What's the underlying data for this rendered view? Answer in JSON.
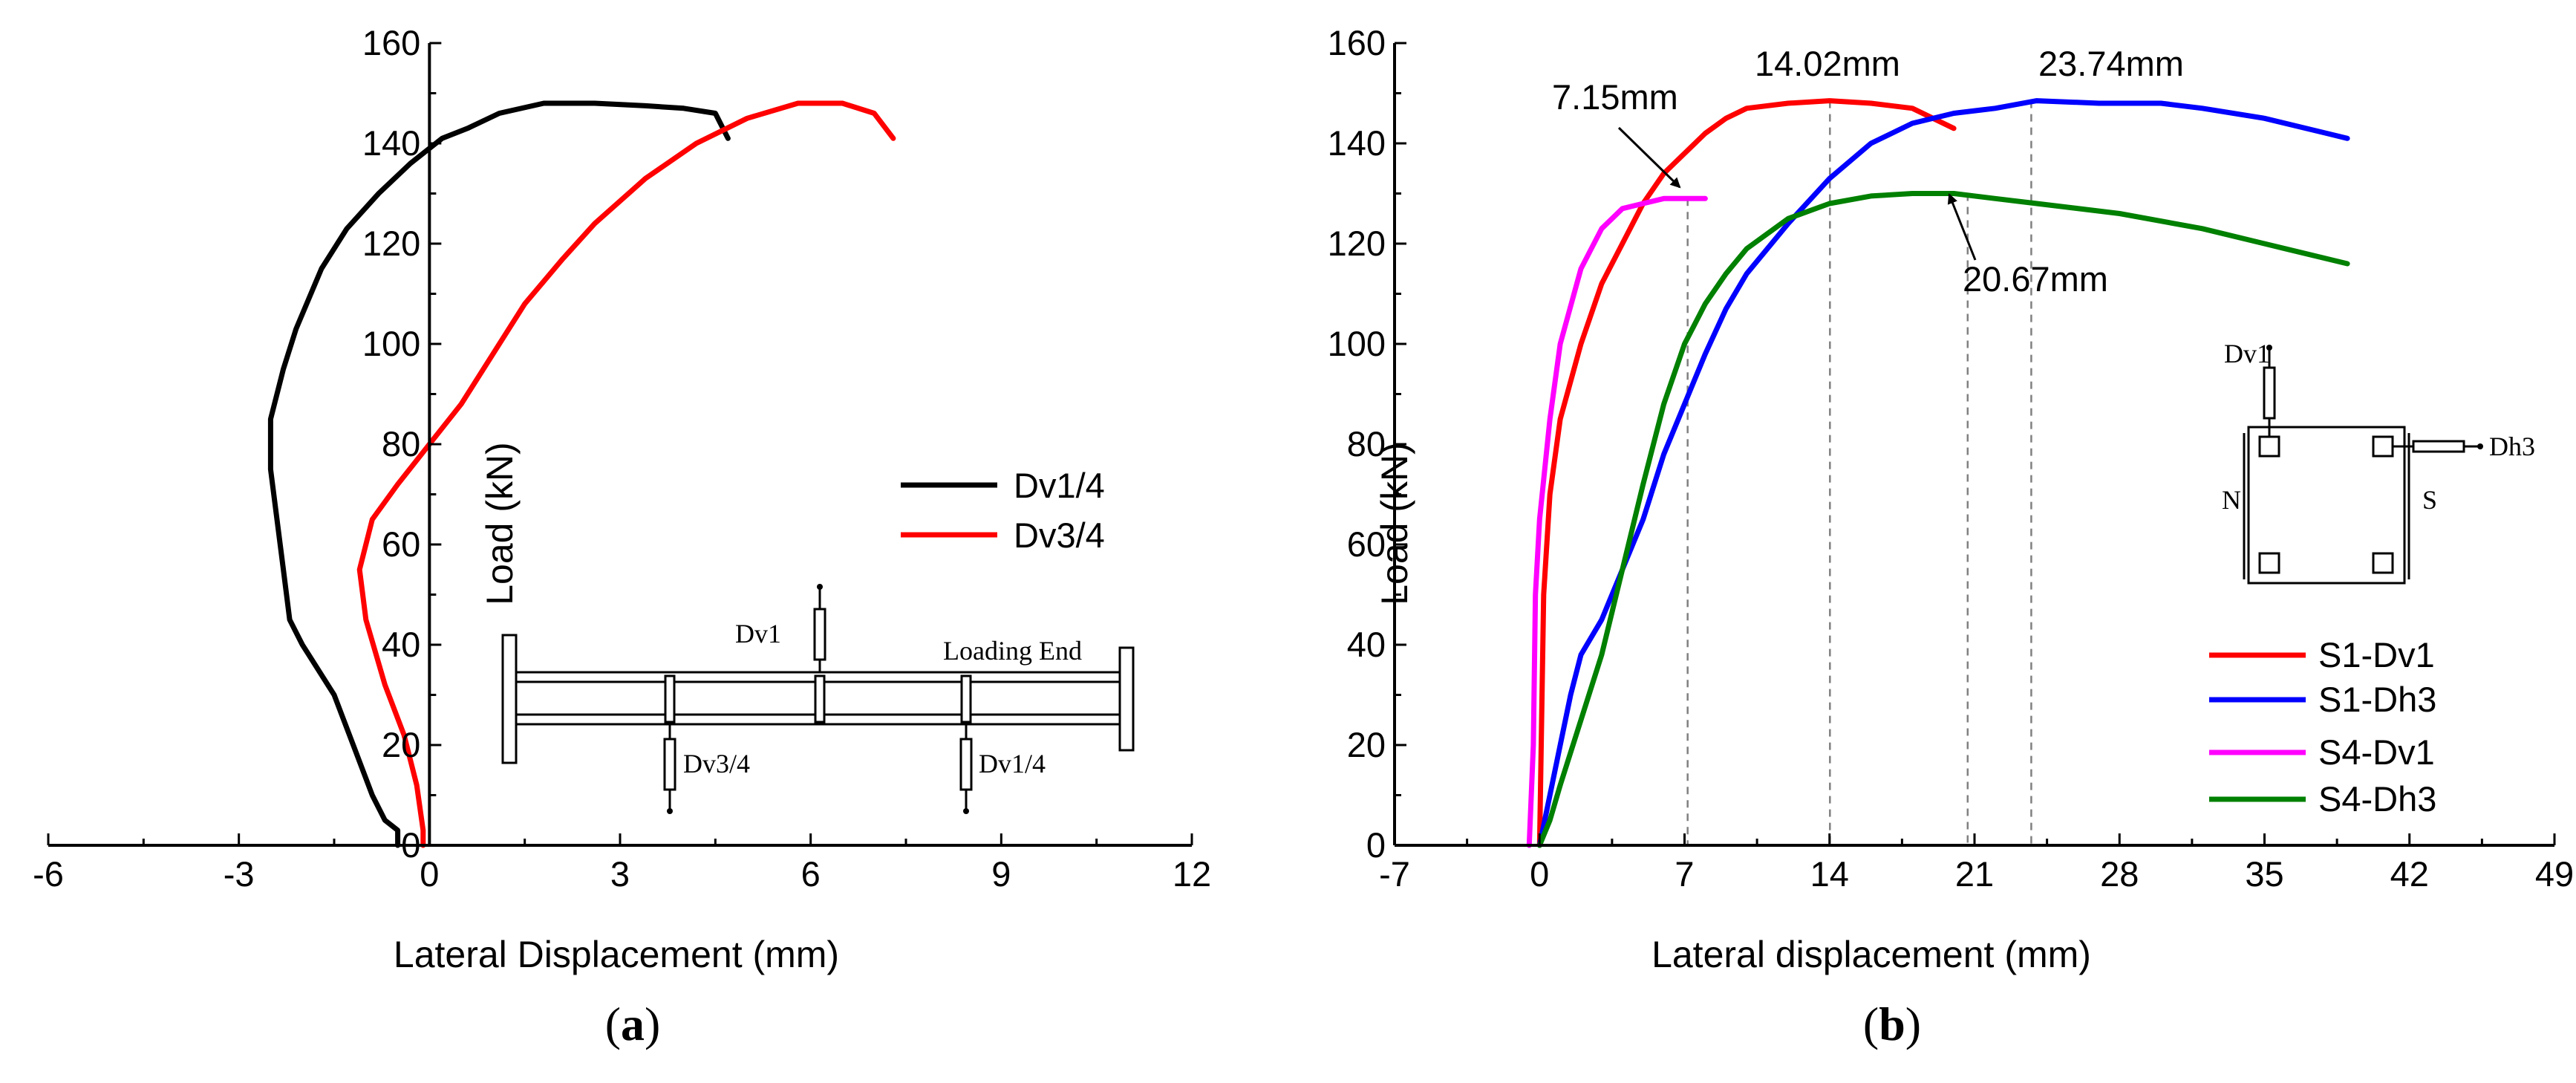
{
  "chart_data": [
    {
      "type": "line",
      "panel_label": "a",
      "xlabel": "Lateral Displacement (mm)",
      "ylabel": "Load (kN)",
      "xlim": [
        -6,
        12
      ],
      "ylim": [
        0,
        160
      ],
      "xticks": [
        "-6",
        "-3",
        "0",
        "3",
        "6",
        "9",
        "12"
      ],
      "yticks": [
        "0",
        "20",
        "40",
        "60",
        "80",
        "100",
        "120",
        "140",
        "160"
      ],
      "grid": false,
      "legend_position": "right",
      "series": [
        {
          "name": "Dv1/4",
          "color": "#000000",
          "points": [
            [
              -0.5,
              0
            ],
            [
              -0.5,
              3
            ],
            [
              -0.7,
              5
            ],
            [
              -0.9,
              10
            ],
            [
              -1.2,
              20
            ],
            [
              -1.5,
              30
            ],
            [
              -1.9,
              38
            ],
            [
              -2.0,
              40
            ],
            [
              -2.2,
              45
            ],
            [
              -2.3,
              55
            ],
            [
              -2.4,
              65
            ],
            [
              -2.5,
              75
            ],
            [
              -2.5,
              85
            ],
            [
              -2.3,
              95
            ],
            [
              -2.1,
              103
            ],
            [
              -1.7,
              115
            ],
            [
              -1.3,
              123
            ],
            [
              -0.8,
              130
            ],
            [
              -0.3,
              136
            ],
            [
              0.2,
              141
            ],
            [
              0.6,
              143
            ],
            [
              1.1,
              146
            ],
            [
              1.8,
              148
            ],
            [
              2.6,
              148
            ],
            [
              3.4,
              147.5
            ],
            [
              4.0,
              147
            ],
            [
              4.5,
              146
            ],
            [
              4.7,
              141
            ]
          ]
        },
        {
          "name": "Dv3/4",
          "color": "#ff0000",
          "points": [
            [
              -0.1,
              0
            ],
            [
              -0.1,
              3
            ],
            [
              -0.2,
              12
            ],
            [
              -0.4,
              22
            ],
            [
              -0.7,
              32
            ],
            [
              -1.0,
              45
            ],
            [
              -1.1,
              55
            ],
            [
              -0.9,
              65
            ],
            [
              -0.5,
              72
            ],
            [
              0,
              80
            ],
            [
              0.5,
              88
            ],
            [
              1.0,
              98
            ],
            [
              1.5,
              108
            ],
            [
              2.1,
              117
            ],
            [
              2.6,
              124
            ],
            [
              3.4,
              133
            ],
            [
              4.2,
              140
            ],
            [
              5.0,
              145
            ],
            [
              5.8,
              148
            ],
            [
              6.5,
              148
            ],
            [
              7.0,
              146
            ],
            [
              7.3,
              141
            ]
          ]
        }
      ],
      "annotations": {
        "schematic_labels": [
          "Dv1",
          "Loading End",
          "Dv3/4",
          "Dv1/4"
        ]
      }
    },
    {
      "type": "line",
      "panel_label": "b",
      "xlabel": "Lateral displacement (mm)",
      "ylabel": "Load (kN)",
      "xlim": [
        -7,
        49
      ],
      "ylim": [
        0,
        160
      ],
      "xticks": [
        "-7",
        "0",
        "7",
        "14",
        "21",
        "28",
        "35",
        "42",
        "49"
      ],
      "yticks": [
        "0",
        "20",
        "40",
        "60",
        "80",
        "100",
        "120",
        "140",
        "160"
      ],
      "grid": false,
      "legend_position": "bottom-right",
      "series": [
        {
          "name": "S1-Dv1",
          "color": "#ff0000",
          "points": [
            [
              0,
              0
            ],
            [
              0.2,
              50
            ],
            [
              0.5,
              70
            ],
            [
              1,
              85
            ],
            [
              2,
              100
            ],
            [
              3,
              112
            ],
            [
              4,
              120
            ],
            [
              5,
              128
            ],
            [
              6,
              134
            ],
            [
              7,
              138
            ],
            [
              8,
              142
            ],
            [
              9,
              145
            ],
            [
              10,
              147
            ],
            [
              12,
              148
            ],
            [
              14,
              148.5
            ],
            [
              16,
              148
            ],
            [
              18,
              147
            ],
            [
              20,
              143
            ]
          ]
        },
        {
          "name": "S1-Dh3",
          "color": "#0000ff",
          "points": [
            [
              0,
              0
            ],
            [
              0.5,
              10
            ],
            [
              1,
              20
            ],
            [
              1.5,
              30
            ],
            [
              2,
              38
            ],
            [
              3,
              45
            ],
            [
              4,
              55
            ],
            [
              5,
              65
            ],
            [
              6,
              78
            ],
            [
              7,
              88
            ],
            [
              8,
              98
            ],
            [
              9,
              107
            ],
            [
              10,
              114
            ],
            [
              12,
              124
            ],
            [
              14,
              133
            ],
            [
              16,
              140
            ],
            [
              18,
              144
            ],
            [
              20,
              146
            ],
            [
              22,
              147
            ],
            [
              24,
              148.5
            ],
            [
              27,
              148
            ],
            [
              30,
              148
            ],
            [
              32,
              147
            ],
            [
              35,
              145
            ],
            [
              38,
              142
            ],
            [
              39,
              141
            ]
          ]
        },
        {
          "name": "S4-Dv1",
          "color": "#ff00ff",
          "points": [
            [
              -0.5,
              0
            ],
            [
              -0.3,
              20
            ],
            [
              -0.2,
              50
            ],
            [
              0,
              65
            ],
            [
              0.5,
              85
            ],
            [
              1,
              100
            ],
            [
              2,
              115
            ],
            [
              3,
              123
            ],
            [
              4,
              127
            ],
            [
              5,
              128
            ],
            [
              6,
              129
            ],
            [
              7,
              129
            ],
            [
              8,
              129
            ]
          ]
        },
        {
          "name": "S4-Dh3",
          "color": "#008000",
          "points": [
            [
              0,
              0
            ],
            [
              0.5,
              5
            ],
            [
              1,
              12
            ],
            [
              2,
              25
            ],
            [
              3,
              38
            ],
            [
              4,
              55
            ],
            [
              5,
              72
            ],
            [
              6,
              88
            ],
            [
              7,
              100
            ],
            [
              8,
              108
            ],
            [
              9,
              114
            ],
            [
              10,
              119
            ],
            [
              12,
              125
            ],
            [
              14,
              128
            ],
            [
              16,
              129.5
            ],
            [
              18,
              130
            ],
            [
              20,
              130
            ],
            [
              22,
              129
            ],
            [
              24,
              128
            ],
            [
              28,
              126
            ],
            [
              32,
              123
            ],
            [
              36,
              119
            ],
            [
              39,
              116
            ]
          ]
        }
      ],
      "annotations": {
        "peak_labels": [
          "7.15mm",
          "14.02mm",
          "23.74mm",
          "20.67mm"
        ],
        "peak_displacements": [
          7.15,
          14.02,
          23.74,
          20.67
        ],
        "schematic_labels": [
          "Dv1",
          "Dh3",
          "N",
          "S"
        ]
      }
    }
  ]
}
